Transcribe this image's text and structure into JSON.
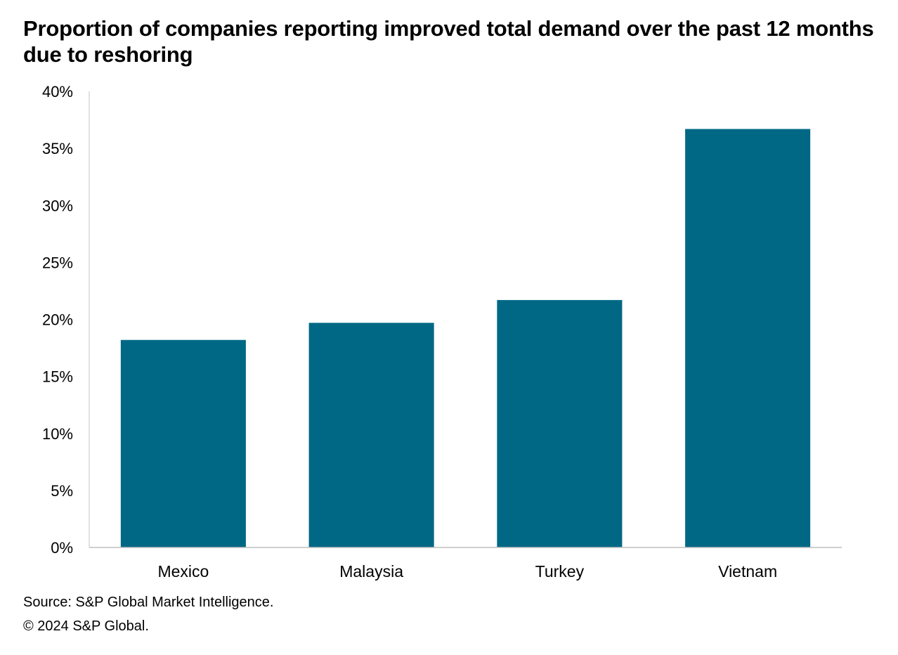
{
  "chart_data": {
    "type": "bar",
    "title": "Proportion of companies  reporting improved total demand over the past 12 months due to reshoring",
    "categories": [
      "Mexico",
      "Malaysia",
      "Turkey",
      "Vietnam"
    ],
    "values": [
      18.2,
      19.7,
      21.7,
      36.7
    ],
    "unit": "%",
    "ylim": [
      0,
      40
    ],
    "yticks": [
      0,
      5,
      10,
      15,
      20,
      25,
      30,
      35,
      40
    ],
    "ytick_labels": [
      "0%",
      "5%",
      "10%",
      "15%",
      "20%",
      "25%",
      "30%",
      "35%",
      "40%"
    ],
    "xlabel": "",
    "ylabel": "",
    "grid": false,
    "legend": "none",
    "bar_color": "#006885"
  },
  "footer": {
    "source": "Source: S&P Global Market Intelligence.",
    "copyright": "© 2024 S&P Global."
  }
}
